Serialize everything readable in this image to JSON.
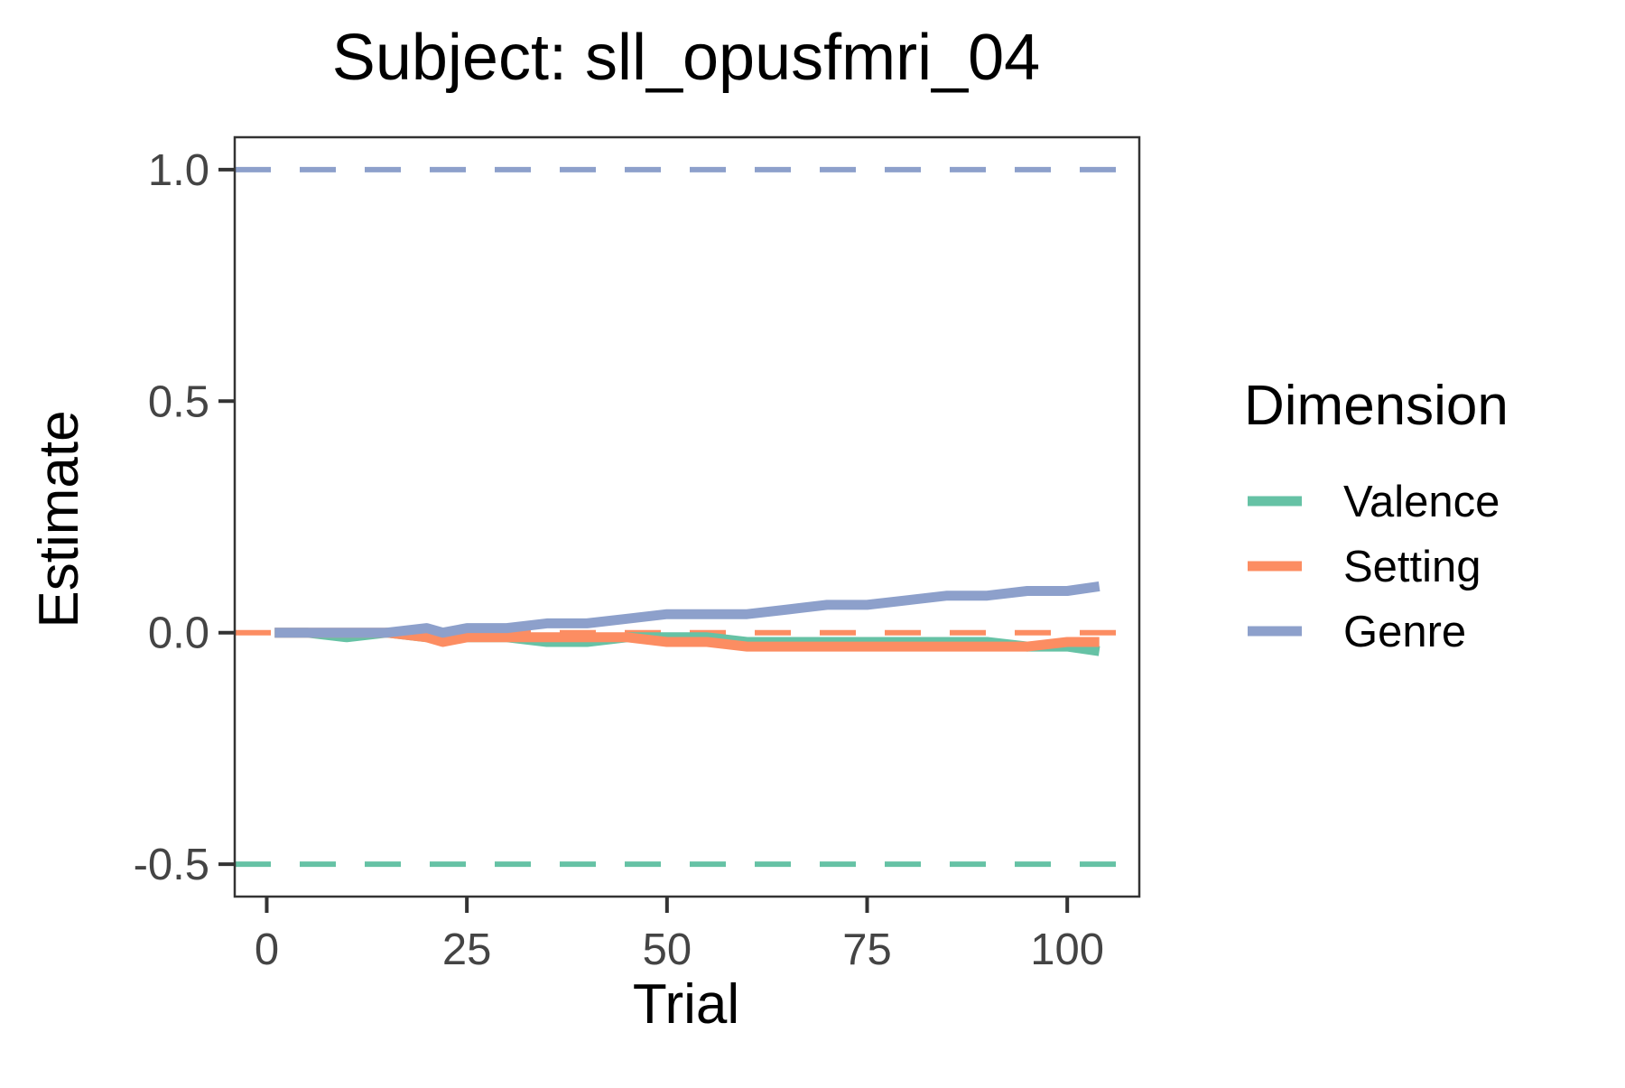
{
  "chart_data": {
    "type": "line",
    "title": "Subject: sll_opusfmri_04",
    "xlabel": "Trial",
    "ylabel": "Estimate",
    "xlim": [
      -4,
      109
    ],
    "ylim": [
      -0.57,
      1.07
    ],
    "x_ticks": [
      0,
      25,
      50,
      75,
      100
    ],
    "x_tick_labels": [
      "0",
      "25",
      "50",
      "75",
      "100"
    ],
    "y_ticks": [
      -0.5,
      0.0,
      0.5,
      1.0
    ],
    "y_tick_labels": [
      "-0.5",
      "0.0",
      "0.5",
      "1.0"
    ],
    "grid": false,
    "legend": {
      "title": "Dimension",
      "placement": "right",
      "entries": [
        "Valence",
        "Setting",
        "Genre"
      ]
    },
    "series": [
      {
        "name": "Valence",
        "color": "#66c2a5",
        "true_value": -0.5,
        "x": [
          1,
          5,
          10,
          15,
          20,
          25,
          30,
          35,
          40,
          45,
          50,
          55,
          60,
          65,
          70,
          75,
          80,
          85,
          90,
          95,
          100,
          104
        ],
        "values": [
          0.0,
          0.0,
          -0.01,
          0.0,
          -0.01,
          -0.01,
          -0.01,
          -0.02,
          -0.02,
          -0.01,
          -0.01,
          -0.01,
          -0.02,
          -0.02,
          -0.02,
          -0.02,
          -0.02,
          -0.02,
          -0.02,
          -0.03,
          -0.03,
          -0.04
        ]
      },
      {
        "name": "Setting",
        "color": "#fc8d62",
        "true_value": 0.0,
        "x": [
          1,
          5,
          10,
          15,
          20,
          22,
          25,
          30,
          35,
          40,
          45,
          50,
          55,
          60,
          65,
          70,
          75,
          80,
          85,
          90,
          95,
          100,
          104
        ],
        "values": [
          0.0,
          0.0,
          0.0,
          0.0,
          -0.01,
          -0.02,
          -0.01,
          -0.01,
          -0.01,
          -0.01,
          -0.01,
          -0.02,
          -0.02,
          -0.03,
          -0.03,
          -0.03,
          -0.03,
          -0.03,
          -0.03,
          -0.03,
          -0.03,
          -0.02,
          -0.02
        ]
      },
      {
        "name": "Genre",
        "color": "#8da0cb",
        "true_value": 1.0,
        "x": [
          1,
          5,
          10,
          15,
          20,
          22,
          25,
          30,
          35,
          40,
          45,
          50,
          55,
          60,
          65,
          70,
          75,
          80,
          85,
          90,
          95,
          100,
          104
        ],
        "values": [
          0.0,
          0.0,
          0.0,
          0.0,
          0.01,
          0.0,
          0.01,
          0.01,
          0.02,
          0.02,
          0.03,
          0.04,
          0.04,
          0.04,
          0.05,
          0.06,
          0.06,
          0.07,
          0.08,
          0.08,
          0.09,
          0.09,
          0.1
        ]
      }
    ]
  }
}
